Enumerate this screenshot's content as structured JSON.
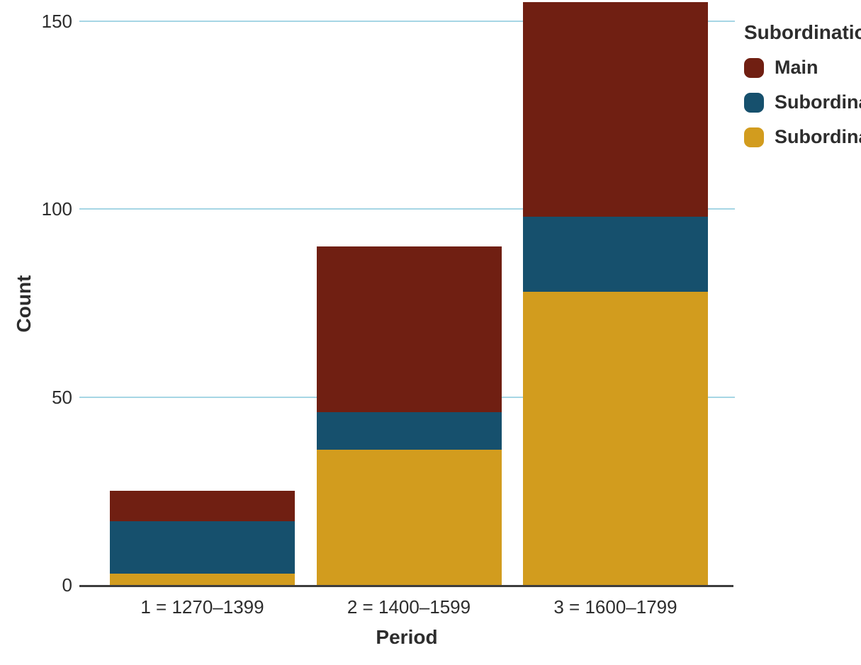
{
  "chart_data": {
    "type": "bar",
    "stacked": true,
    "title": "",
    "xlabel": "Period",
    "ylabel": "Count",
    "categories": [
      "1 = 1270–1399",
      "2 = 1400–1599",
      "3 = 1600–1799"
    ],
    "series": [
      {
        "name": "Main",
        "color": "#701f12",
        "values": [
          8,
          44,
          57
        ]
      },
      {
        "name": "Subordinate",
        "color": "#16506d",
        "values": [
          14,
          10,
          20
        ]
      },
      {
        "name": "Subordinate",
        "color": "#d29c1e",
        "values": [
          3,
          36,
          78
        ]
      }
    ],
    "stack_order_bottom_to_top": [
      "Subordinate (gold)",
      "Subordinate (blue)",
      "Main"
    ],
    "totals": [
      25,
      90,
      155
    ],
    "yticks": [
      0,
      50,
      100,
      150
    ],
    "ylim": [
      0,
      157
    ],
    "grid": "horizontal gridlines at 50, 100, 150",
    "legend": {
      "title": "Subordination",
      "position": "top-right, clipped by image edge",
      "items": [
        {
          "label": "Main",
          "color": "#701f12"
        },
        {
          "label": "Subordinate",
          "color": "#16506d"
        },
        {
          "label": "Subordinate",
          "color": "#d29c1e"
        }
      ]
    }
  },
  "colors": {
    "background": "#ffffff",
    "gridline": "#a6d6e5",
    "axis_line": "#3d3d3d",
    "text": "#2d2d2d"
  }
}
